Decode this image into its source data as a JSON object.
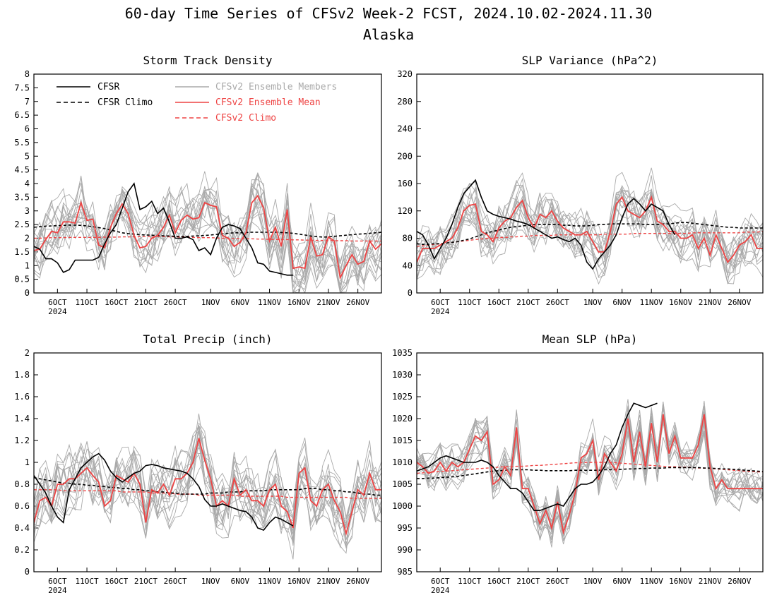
{
  "figure": {
    "title_line1": "60-day Time Series of CFSv2 Week-2 FCST, 2024.10.02-2024.11.30",
    "title_line2": "Alaska"
  },
  "legend": {
    "cfsr": "CFSR",
    "cfsr_climo": "CFSR Climo",
    "members": "CFSv2 Ensemble Members",
    "ens_mean": "CFSv2 Ensemble Mean",
    "cfsv2_climo": "CFSv2 Climo"
  },
  "colors": {
    "cfsr": "#000000",
    "members": "#aaaaaa",
    "ens_mean": "#ee4444",
    "cfsv2_climo": "#ee4444"
  },
  "x_axis": {
    "days": 60,
    "start": "2024-10-02",
    "end": "2024-11-30",
    "tick_labels": [
      "6OCT",
      "11OCT",
      "16OCT",
      "21OCT",
      "26OCT",
      "1NOV",
      "6NOV",
      "11NOV",
      "16NOV",
      "21NOV",
      "26NOV"
    ],
    "tick_dates": [
      "2024-10-06",
      "2024-10-11",
      "2024-10-16",
      "2024-10-21",
      "2024-10-26",
      "2024-11-01",
      "2024-11-06",
      "2024-11-11",
      "2024-11-16",
      "2024-11-21",
      "2024-11-26"
    ],
    "year_label": "2024"
  },
  "chart_data": [
    {
      "id": "storm",
      "type": "line",
      "title": "Storm Track Density",
      "ylim": [
        0,
        8
      ],
      "yticks": [
        "0",
        "0.5",
        "1",
        "1.5",
        "2",
        "2.5",
        "3",
        "3.5",
        "4",
        "4.5",
        "5",
        "5.5",
        "6",
        "6.5",
        "7",
        "7.5",
        "8"
      ],
      "cfsr": [
        1.7,
        1.6,
        1.25,
        1.25,
        1.1,
        0.75,
        0.85,
        1.2,
        1.2,
        1.2,
        1.2,
        1.3,
        1.8,
        2.2,
        2.5,
        3.1,
        3.7,
        4.0,
        3.05,
        3.15,
        3.35,
        2.9,
        3.1,
        2.6,
        2.0,
        2.0,
        2.05,
        1.95,
        1.55,
        1.65,
        1.4,
        2.0,
        2.4,
        2.5,
        2.45,
        2.35,
        2.0,
        1.65,
        1.1,
        1.05,
        0.8,
        0.75,
        0.7,
        0.65,
        0.65
      ],
      "cfsr_climo": [
        2.4,
        2.42,
        2.44,
        2.45,
        2.46,
        2.47,
        2.48,
        2.48,
        2.47,
        2.45,
        2.42,
        2.39,
        2.35,
        2.3,
        2.25,
        2.2,
        2.17,
        2.15,
        2.13,
        2.12,
        2.11,
        2.1,
        2.09,
        2.08,
        2.07,
        2.07,
        2.07,
        2.08,
        2.09,
        2.1,
        2.12,
        2.14,
        2.16,
        2.18,
        2.2,
        2.2,
        2.21,
        2.22,
        2.22,
        2.22,
        2.22,
        2.22,
        2.21,
        2.2,
        2.18,
        2.15,
        2.12,
        2.08,
        2.06,
        2.04,
        2.05,
        2.07,
        2.09,
        2.11,
        2.13,
        2.15,
        2.16,
        2.18,
        2.2,
        2.22
      ],
      "cfsv2_climo": [
        2.0,
        2.0,
        2.01,
        2.02,
        2.02,
        2.02,
        2.03,
        2.03,
        2.03,
        2.03,
        2.03,
        2.03,
        2.04,
        2.04,
        2.04,
        2.05,
        2.05,
        2.05,
        2.06,
        2.06,
        2.06,
        2.06,
        2.06,
        2.05,
        2.05,
        2.04,
        2.04,
        2.03,
        2.02,
        2.02,
        2.02,
        2.01,
        2.0,
        2.0,
        1.99,
        1.99,
        1.98,
        1.98,
        1.97,
        1.97,
        1.96,
        1.96,
        1.95,
        1.95,
        1.94,
        1.94,
        1.93,
        1.93,
        1.92,
        1.92,
        1.92,
        1.91,
        1.91,
        1.91,
        1.9,
        1.9,
        1.9,
        1.9,
        1.9,
        1.9
      ],
      "ens_mean": [
        1.55,
        1.6,
        1.95,
        2.25,
        2.2,
        2.6,
        2.6,
        2.55,
        3.3,
        2.65,
        2.7,
        1.75,
        1.65,
        2.4,
        2.9,
        3.25,
        2.9,
        2.1,
        1.65,
        1.7,
        2.0,
        2.1,
        2.4,
        2.85,
        2.2,
        2.65,
        2.85,
        2.7,
        2.75,
        3.3,
        3.2,
        3.15,
        2.1,
        2.0,
        1.7,
        1.85,
        2.2,
        3.3,
        3.55,
        3.1,
        1.9,
        2.4,
        1.7,
        3.05,
        0.9,
        0.95,
        0.9,
        2.05,
        1.35,
        1.4,
        2.05,
        1.9,
        0.55,
        1.0,
        1.4,
        1.05,
        1.15,
        1.9,
        1.6,
        1.8
      ],
      "member_count": 16,
      "member_spread": 1.15
    },
    {
      "id": "slpvar",
      "type": "line",
      "title": "SLP Variance (hPa^2)",
      "ylim": [
        0,
        320
      ],
      "yticks": [
        "0",
        "40",
        "80",
        "120",
        "160",
        "200",
        "240",
        "280",
        "320"
      ],
      "cfsr": [
        90,
        85,
        70,
        50,
        65,
        80,
        100,
        125,
        145,
        155,
        165,
        140,
        120,
        115,
        112,
        110,
        108,
        105,
        103,
        100,
        95,
        90,
        85,
        80,
        82,
        78,
        75,
        80,
        70,
        45,
        35,
        50,
        60,
        70,
        85,
        110,
        130,
        138,
        130,
        120,
        130,
        125,
        120,
        100,
        85
      ],
      "cfsr_climo": [
        72,
        71,
        71,
        72,
        72,
        73,
        74,
        75,
        77,
        79,
        82,
        85,
        88,
        90,
        92,
        94,
        96,
        97,
        98,
        99,
        100,
        100,
        100,
        100,
        100,
        99,
        99,
        98,
        98,
        98,
        99,
        100,
        100,
        101,
        101,
        101,
        101,
        101,
        101,
        100,
        100,
        100,
        101,
        101,
        102,
        103,
        103,
        102,
        101,
        100,
        99,
        98,
        97,
        96,
        96,
        95,
        95,
        95,
        95,
        95
      ],
      "cfsv2_climo": [
        68,
        69,
        70,
        71,
        72,
        73,
        74,
        75,
        76,
        77,
        78,
        79,
        80,
        80,
        81,
        81,
        82,
        82,
        83,
        83,
        84,
        84,
        84,
        84,
        85,
        85,
        85,
        85,
        85,
        85,
        85,
        85,
        86,
        86,
        86,
        86,
        86,
        87,
        87,
        87,
        87,
        87,
        87,
        87,
        87,
        87,
        87,
        88,
        88,
        88,
        88,
        88,
        88,
        88,
        88,
        88,
        89,
        89,
        89,
        90
      ],
      "ens_mean": [
        45,
        65,
        65,
        65,
        70,
        75,
        80,
        95,
        120,
        128,
        130,
        90,
        85,
        75,
        95,
        105,
        110,
        125,
        135,
        110,
        95,
        115,
        110,
        120,
        105,
        95,
        90,
        85,
        85,
        90,
        75,
        60,
        60,
        90,
        130,
        140,
        120,
        115,
        110,
        120,
        140,
        105,
        100,
        90,
        90,
        80,
        80,
        85,
        65,
        80,
        55,
        85,
        65,
        45,
        55,
        70,
        75,
        85,
        65,
        65
      ],
      "member_count": 16,
      "member_spread": 42
    },
    {
      "id": "precip",
      "type": "line",
      "title": "Total Precip (inch)",
      "ylim": [
        0,
        2
      ],
      "yticks": [
        "0",
        "0.2",
        "0.4",
        "0.6",
        "0.8",
        "1",
        "1.2",
        "1.4",
        "1.6",
        "1.8",
        "2"
      ],
      "cfsr": [
        0.88,
        0.8,
        0.72,
        0.6,
        0.5,
        0.45,
        0.75,
        0.85,
        0.95,
        1.0,
        1.05,
        1.08,
        1.02,
        0.92,
        0.86,
        0.82,
        0.86,
        0.9,
        0.92,
        0.97,
        0.98,
        0.97,
        0.95,
        0.94,
        0.93,
        0.92,
        0.9,
        0.85,
        0.78,
        0.66,
        0.6,
        0.6,
        0.62,
        0.6,
        0.58,
        0.56,
        0.55,
        0.5,
        0.4,
        0.38,
        0.45,
        0.5,
        0.48,
        0.45,
        0.42
      ],
      "cfsr_climo": [
        0.86,
        0.85,
        0.84,
        0.83,
        0.82,
        0.81,
        0.81,
        0.8,
        0.8,
        0.79,
        0.79,
        0.78,
        0.78,
        0.77,
        0.77,
        0.76,
        0.76,
        0.75,
        0.75,
        0.74,
        0.74,
        0.73,
        0.73,
        0.72,
        0.72,
        0.71,
        0.71,
        0.71,
        0.71,
        0.71,
        0.72,
        0.72,
        0.72,
        0.73,
        0.73,
        0.73,
        0.74,
        0.74,
        0.74,
        0.74,
        0.75,
        0.75,
        0.75,
        0.75,
        0.75,
        0.75,
        0.76,
        0.76,
        0.76,
        0.75,
        0.75,
        0.74,
        0.74,
        0.73,
        0.73,
        0.72,
        0.71,
        0.71,
        0.7,
        0.7
      ],
      "cfsv2_climo": [
        0.75,
        0.75,
        0.75,
        0.75,
        0.75,
        0.74,
        0.74,
        0.74,
        0.74,
        0.74,
        0.74,
        0.74,
        0.74,
        0.74,
        0.74,
        0.73,
        0.73,
        0.73,
        0.73,
        0.73,
        0.72,
        0.72,
        0.72,
        0.72,
        0.71,
        0.71,
        0.71,
        0.71,
        0.7,
        0.7,
        0.7,
        0.7,
        0.7,
        0.7,
        0.7,
        0.69,
        0.69,
        0.69,
        0.69,
        0.69,
        0.69,
        0.69,
        0.69,
        0.68,
        0.68,
        0.68,
        0.68,
        0.68,
        0.68,
        0.68,
        0.68,
        0.68,
        0.68,
        0.68,
        0.67,
        0.67,
        0.67,
        0.67,
        0.67,
        0.67
      ],
      "ens_mean": [
        0.45,
        0.65,
        0.68,
        0.6,
        0.8,
        0.8,
        0.85,
        0.85,
        0.9,
        0.95,
        0.88,
        0.82,
        0.6,
        0.65,
        0.88,
        0.85,
        0.82,
        0.9,
        0.8,
        0.45,
        0.75,
        0.72,
        0.8,
        0.7,
        0.85,
        0.85,
        0.9,
        1.0,
        1.22,
        1.02,
        0.85,
        0.6,
        0.65,
        0.6,
        0.85,
        0.7,
        0.75,
        0.65,
        0.65,
        0.6,
        0.75,
        0.8,
        0.6,
        0.55,
        0.4,
        0.9,
        0.95,
        0.65,
        0.6,
        0.75,
        0.8,
        0.65,
        0.55,
        0.35,
        0.55,
        0.75,
        0.7,
        0.9,
        0.75,
        0.75
      ],
      "member_count": 16,
      "member_spread": 0.32
    },
    {
      "id": "meanslp",
      "type": "line",
      "title": "Mean SLP (hPa)",
      "ylim": [
        985,
        1035
      ],
      "yticks": [
        "985",
        "990",
        "995",
        "1000",
        "1005",
        "1010",
        "1015",
        "1020",
        "1025",
        "1030",
        "1035"
      ],
      "cfsr": [
        1008,
        1008.5,
        1009,
        1010,
        1011,
        1011.5,
        1011,
        1010.5,
        1010,
        1010,
        1010,
        1010.5,
        1010,
        1009,
        1007,
        1005.5,
        1004,
        1004,
        1003,
        1001,
        999,
        999,
        999.5,
        1000,
        1000.5,
        1000,
        1002,
        1004,
        1005,
        1005,
        1005.5,
        1007,
        1009,
        1012,
        1014,
        1018,
        1021,
        1023.5,
        1023,
        1022.5,
        1023,
        1023.5
      ],
      "cfsr_climo": [
        1006.3,
        1006.3,
        1006.4,
        1006.4,
        1006.5,
        1006.6,
        1006.7,
        1006.8,
        1007,
        1007.2,
        1007.4,
        1007.6,
        1007.8,
        1008,
        1008.1,
        1008.2,
        1008.3,
        1008.3,
        1008.3,
        1008.3,
        1008.2,
        1008.2,
        1008.1,
        1008.1,
        1008.1,
        1008.1,
        1008.1,
        1008.2,
        1008.2,
        1008.2,
        1008.2,
        1008.2,
        1008.3,
        1008.3,
        1008.4,
        1008.4,
        1008.5,
        1008.5,
        1008.6,
        1008.6,
        1008.7,
        1008.7,
        1008.7,
        1008.8,
        1008.8,
        1008.8,
        1008.8,
        1008.8,
        1008.8,
        1008.7,
        1008.7,
        1008.6,
        1008.5,
        1008.5,
        1008.4,
        1008.3,
        1008.2,
        1008.1,
        1008,
        1007.9
      ],
      "cfsv2_climo": [
        1007.5,
        1007.6,
        1007.7,
        1007.8,
        1007.9,
        1008,
        1008.1,
        1008.2,
        1008.3,
        1008.4,
        1008.5,
        1008.6,
        1008.7,
        1008.8,
        1008.9,
        1009,
        1009,
        1009.1,
        1009.1,
        1009.2,
        1009.3,
        1009.3,
        1009.4,
        1009.5,
        1009.6,
        1009.7,
        1009.8,
        1009.9,
        1009.9,
        1010,
        1010,
        1010,
        1010,
        1010,
        1009.9,
        1009.8,
        1009.7,
        1009.6,
        1009.5,
        1009.4,
        1009.3,
        1009.2,
        1009.1,
        1009,
        1009,
        1008.9,
        1008.9,
        1008.8,
        1008.7,
        1008.7,
        1008.6,
        1008.5,
        1008.4,
        1008.3,
        1008.2,
        1008.1,
        1008,
        1007.9,
        1007.8,
        1007.8
      ],
      "ens_mean": [
        1010,
        1009,
        1007.5,
        1008,
        1010,
        1008,
        1010,
        1009,
        1010,
        1013,
        1016,
        1015,
        1017,
        1005,
        1006,
        1009,
        1007,
        1018,
        1004,
        1004,
        1000,
        996,
        999,
        995,
        1001,
        994,
        998,
        1003,
        1011,
        1012,
        1015,
        1006,
        1012,
        1010,
        1008,
        1012,
        1020,
        1010,
        1017,
        1009,
        1019,
        1010,
        1021,
        1012,
        1016,
        1011,
        1011,
        1011,
        1014,
        1021,
        1009,
        1004,
        1006,
        1004,
        1004,
        1004,
        1004,
        1004,
        1004,
        1004
      ],
      "member_count": 16,
      "member_spread": 5
    }
  ]
}
